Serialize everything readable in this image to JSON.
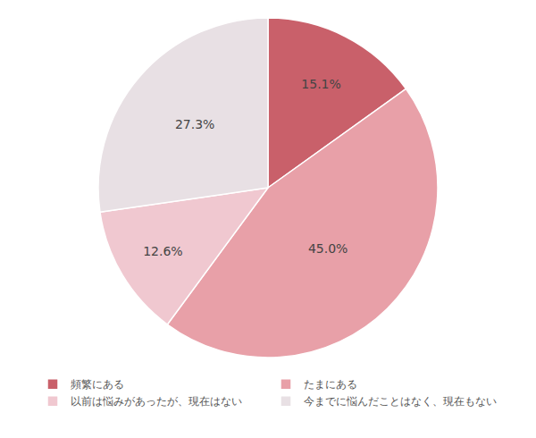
{
  "chart_data": {
    "type": "pie",
    "categories": [
      "頻繁にある",
      "たまにある",
      "以前は悩みがあったが、現在はない",
      "今までに悩んだことはなく、現在もない"
    ],
    "values": [
      15.1,
      45.0,
      12.6,
      27.3
    ],
    "value_labels": [
      "15.1%",
      "45.0%",
      "12.6%",
      "27.3%"
    ],
    "colors": [
      "#c9606a",
      "#e8a0a8",
      "#f0c8d0",
      "#e8e0e4"
    ],
    "data_labels": true,
    "legend": "bottom"
  }
}
